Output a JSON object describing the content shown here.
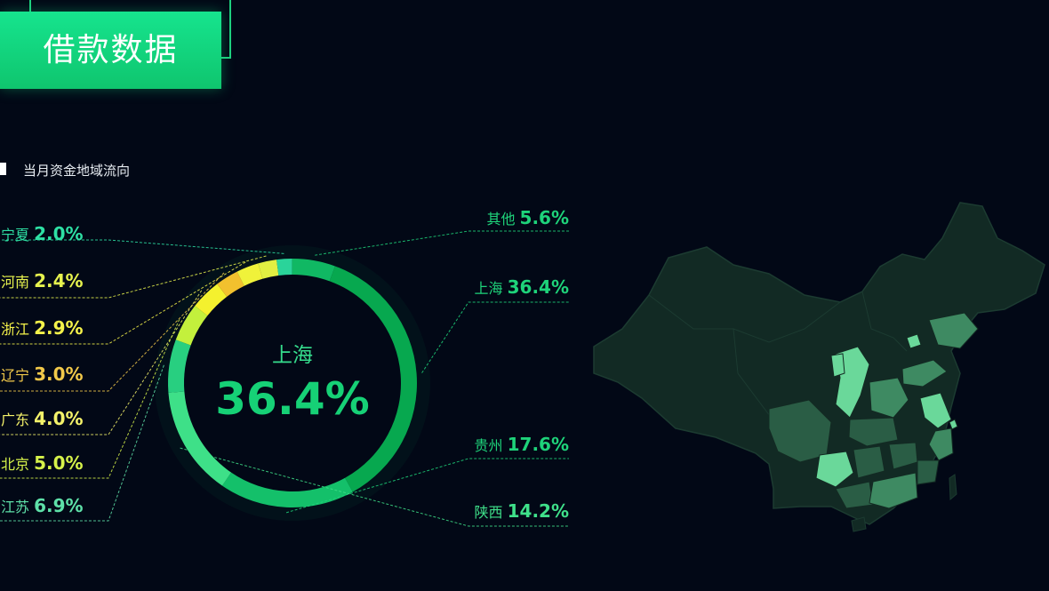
{
  "header": {
    "title": "借款数据"
  },
  "section": {
    "subtitle": "当月资金地域流向"
  },
  "center": {
    "region": "上海",
    "percent": "36.4%"
  },
  "chart_data": {
    "type": "pie",
    "subtype": "donut",
    "title": "当月资金地域流向",
    "slices": [
      {
        "name": "上海",
        "value": 36.4,
        "label": "36.4%",
        "color": "#07a84f"
      },
      {
        "name": "贵州",
        "value": 17.6,
        "label": "17.6%",
        "color": "#14c06a"
      },
      {
        "name": "陕西",
        "value": 14.2,
        "label": "14.2%",
        "color": "#3ee088"
      },
      {
        "name": "江苏",
        "value": 6.9,
        "label": "6.9%",
        "color": "#28cf80"
      },
      {
        "name": "北京",
        "value": 5.0,
        "label": "5.0%",
        "color": "#c3f03c"
      },
      {
        "name": "广东",
        "value": 4.0,
        "label": "4.0%",
        "color": "#f4f12e"
      },
      {
        "name": "辽宁",
        "value": 3.0,
        "label": "3.0%",
        "color": "#f2c12e"
      },
      {
        "name": "浙江",
        "value": 2.9,
        "label": "2.9%",
        "color": "#f0f23a"
      },
      {
        "name": "河南",
        "value": 2.4,
        "label": "2.4%",
        "color": "#e2ef42"
      },
      {
        "name": "宁夏",
        "value": 2.0,
        "label": "2.0%",
        "color": "#2ad49a"
      },
      {
        "name": "其他",
        "value": 5.6,
        "label": "5.6%",
        "color": "#10b863"
      }
    ],
    "label_colors": {
      "上海": "#1ed37a",
      "贵州": "#1ed37a",
      "陕西": "#3fe08a",
      "其他": "#1ed37a",
      "江苏": "#5ee0a8",
      "北京": "#d6f24a",
      "广东": "#f4f26a",
      "辽宁": "#f2c94a",
      "浙江": "#f4f24a",
      "河南": "#e6f24e",
      "宁夏": "#2ee0a4"
    },
    "legend_position": "callouts-left-right"
  },
  "map": {
    "base_color": "#122a24",
    "highlight_colors": [
      "#2a5d45",
      "#3e8a62",
      "#6ad89a"
    ]
  }
}
